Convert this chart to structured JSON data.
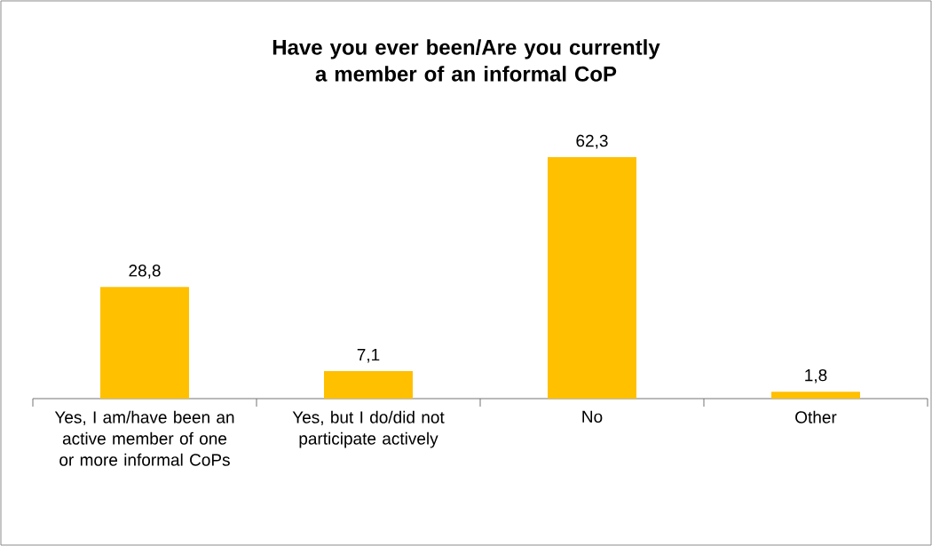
{
  "chart_data": {
    "type": "bar",
    "title": "Have you ever been/Are you currently a member of an informal CoP",
    "categories": [
      "Yes, I am/have been an active member of one or more informal CoPs",
      "Yes, but I do/did not participate actively",
      "No",
      "Other"
    ],
    "values": [
      28.8,
      7.1,
      62.3,
      1.8
    ],
    "value_labels": [
      "28,8",
      "7,1",
      "62,3",
      "1,8"
    ],
    "color": "#ffc000"
  }
}
